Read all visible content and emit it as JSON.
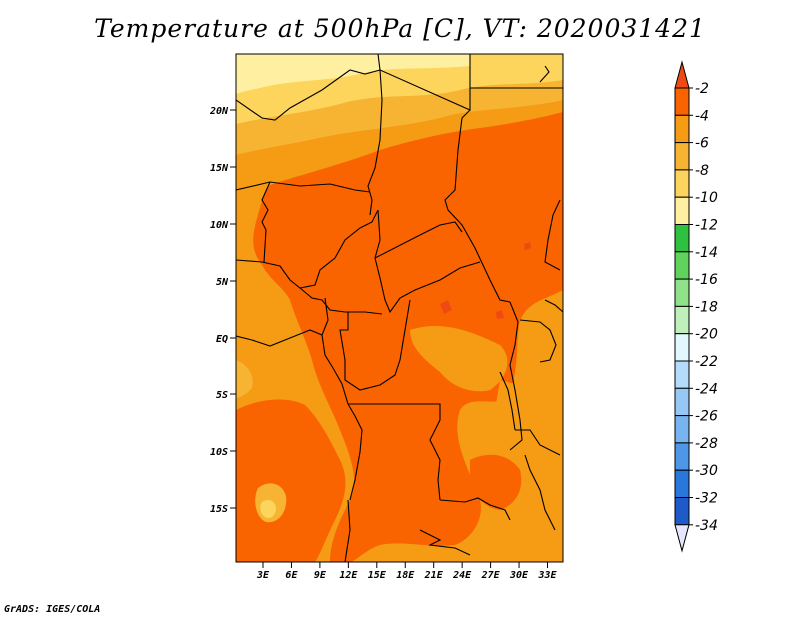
{
  "title": "Temperature at 500hPa [C], VT: 2020031421",
  "footer": "GrADS: IGES/COLA",
  "map": {
    "variable": "Temperature at 500hPa",
    "units": "C",
    "valid_time": "2020031421",
    "region": "Central Africa",
    "lat_labels": [
      "20N",
      "15N",
      "10N",
      "5N",
      "EQ",
      "5S",
      "10S",
      "15S"
    ],
    "lon_labels": [
      "3E",
      "6E",
      "9E",
      "12E",
      "15E",
      "18E",
      "21E",
      "24E",
      "27E",
      "30E",
      "33E"
    ],
    "colors": {
      "le_-2": "#f5501e",
      "-4_-2": "#fa6400",
      "-6_-4": "#f59b14",
      "-8_-6": "#f6b432",
      "-10_-8": "#fdd55c",
      "-12_-10": "#fef0a0",
      "border": "#000000"
    }
  },
  "colorbar": {
    "labels": [
      "-2",
      "-4",
      "-6",
      "-8",
      "-10",
      "-12",
      "-14",
      "-16",
      "-18",
      "-20",
      "-22",
      "-24",
      "-26",
      "-28",
      "-30",
      "-32",
      "-34"
    ],
    "colors": [
      "#f04a14",
      "#fa6400",
      "#f59b14",
      "#f6b432",
      "#fdd55c",
      "#fef0a0",
      "#30c040",
      "#5fd35c",
      "#8fe28a",
      "#bff0bc",
      "#e1f8ff",
      "#b4dcfa",
      "#96c8f5",
      "#78b4f0",
      "#4e96e8",
      "#2878dc",
      "#1e5ac8",
      "#1450b4",
      "#0a148c",
      "#e6e6ff"
    ]
  }
}
